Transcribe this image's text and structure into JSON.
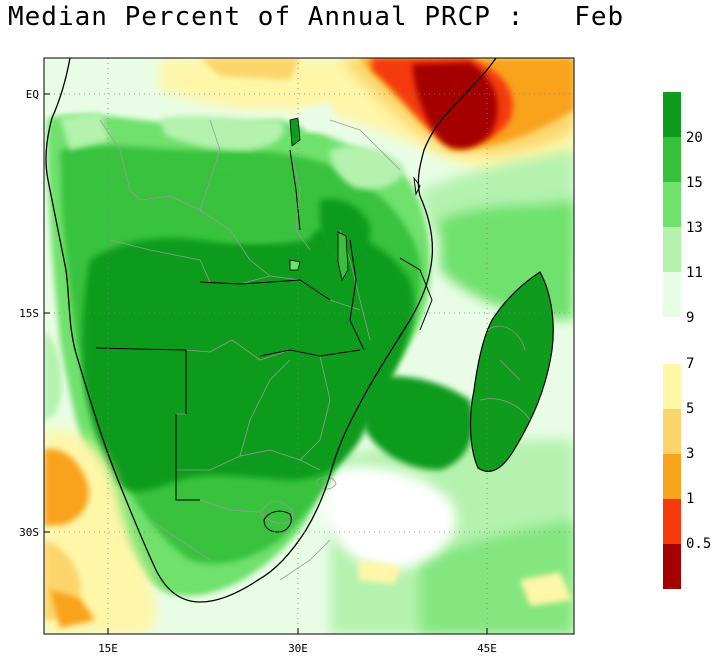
{
  "title": "Median Percent of Annual PRCP :   Feb",
  "map": {
    "x_ticks": [
      "15E",
      "30E",
      "45E"
    ],
    "y_ticks": [
      "EQ",
      "15S",
      "30S"
    ]
  },
  "legend": {
    "upper": [
      {
        "color": "#0f9b1c",
        "label": "20"
      },
      {
        "color": "#38c23c",
        "label": "15"
      },
      {
        "color": "#6fe16c",
        "label": "13"
      },
      {
        "color": "#b4f2ae",
        "label": "11"
      },
      {
        "color": "#e9fde6",
        "label": "9"
      }
    ],
    "lower": [
      {
        "color": "#fff6a8",
        "label": "7"
      },
      {
        "color": "#fbd56b",
        "label": "5"
      },
      {
        "color": "#f9a21b",
        "label": "3"
      },
      {
        "color": "#f53b0b",
        "label": "1"
      },
      {
        "color": "#a50000",
        "label": "0.5"
      }
    ]
  }
}
